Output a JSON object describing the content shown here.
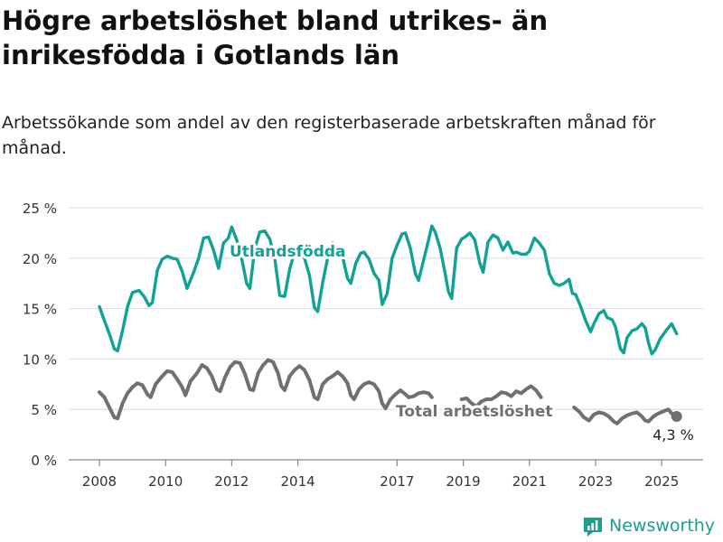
{
  "title": "Högre arbetslöshet bland utrikes- än inrikesfödda i Gotlands län",
  "subtitle": "Arbetssökande som andel av den registerbaserade arbetskraften månad för månad.",
  "brand": "Newsworthy",
  "colors": {
    "foreign": "#12a195",
    "total": "#707070",
    "brand": "#1a9e8f"
  },
  "chart_data": {
    "type": "line",
    "ylim": [
      0,
      25
    ],
    "yticks": [
      "0 %",
      "5 %",
      "10 %",
      "15 %",
      "20 %",
      "25 %"
    ],
    "xticks": [
      "2008",
      "2010",
      "2012",
      "2014",
      "2017",
      "2019",
      "2021",
      "2023",
      "2025"
    ],
    "grid": "horizontal",
    "series": [
      {
        "name": "Utlandsfödda",
        "color": "#12a195",
        "points": [
          [
            2008.0,
            15.2
          ],
          [
            2008.15,
            13.8
          ],
          [
            2008.3,
            12.5
          ],
          [
            2008.45,
            11.0
          ],
          [
            2008.55,
            10.8
          ],
          [
            2008.7,
            12.8
          ],
          [
            2008.85,
            15.2
          ],
          [
            2009.0,
            16.6
          ],
          [
            2009.2,
            16.8
          ],
          [
            2009.35,
            16.2
          ],
          [
            2009.5,
            15.3
          ],
          [
            2009.6,
            15.6
          ],
          [
            2009.75,
            18.8
          ],
          [
            2009.9,
            19.9
          ],
          [
            2010.05,
            20.2
          ],
          [
            2010.2,
            20.0
          ],
          [
            2010.35,
            19.9
          ],
          [
            2010.5,
            18.7
          ],
          [
            2010.65,
            17.0
          ],
          [
            2010.85,
            18.6
          ],
          [
            2011.0,
            20.0
          ],
          [
            2011.15,
            22.0
          ],
          [
            2011.3,
            22.1
          ],
          [
            2011.45,
            20.8
          ],
          [
            2011.6,
            19.0
          ],
          [
            2011.75,
            21.5
          ],
          [
            2011.9,
            22.0
          ],
          [
            2012.0,
            23.1
          ],
          [
            2012.15,
            21.8
          ],
          [
            2012.3,
            20.0
          ],
          [
            2012.45,
            17.5
          ],
          [
            2012.55,
            17.0
          ],
          [
            2012.7,
            21.0
          ],
          [
            2012.85,
            22.6
          ],
          [
            2013.0,
            22.7
          ],
          [
            2013.15,
            21.9
          ],
          [
            2013.3,
            20.0
          ],
          [
            2013.45,
            16.3
          ],
          [
            2013.6,
            16.2
          ],
          [
            2013.75,
            18.9
          ],
          [
            2013.9,
            20.6
          ],
          [
            2014.05,
            20.8
          ],
          [
            2014.2,
            20.0
          ],
          [
            2014.35,
            18.3
          ],
          [
            2014.5,
            15.1
          ],
          [
            2014.6,
            14.7
          ],
          [
            2014.75,
            17.6
          ],
          [
            2014.9,
            20.0
          ],
          [
            2015.05,
            21.5
          ],
          [
            2015.2,
            20.8
          ],
          [
            2015.35,
            20.2
          ],
          [
            2015.5,
            18.0
          ],
          [
            2015.6,
            17.5
          ],
          [
            2015.75,
            19.5
          ],
          [
            2015.9,
            20.5
          ],
          [
            2016.0,
            20.6
          ],
          [
            2016.15,
            19.9
          ],
          [
            2016.3,
            18.5
          ],
          [
            2016.45,
            17.8
          ],
          [
            2016.55,
            15.4
          ],
          [
            2016.7,
            16.5
          ],
          [
            2016.85,
            20.0
          ],
          [
            2017.0,
            21.3
          ],
          [
            2017.15,
            22.4
          ],
          [
            2017.25,
            22.5
          ],
          [
            2017.4,
            21.0
          ],
          [
            2017.55,
            18.5
          ],
          [
            2017.65,
            17.8
          ],
          [
            2017.8,
            19.8
          ],
          [
            2017.95,
            21.8
          ],
          [
            2018.05,
            23.2
          ],
          [
            2018.15,
            22.6
          ],
          [
            2018.3,
            21.0
          ],
          [
            2018.45,
            18.5
          ],
          [
            2018.55,
            16.7
          ],
          [
            2018.65,
            16.0
          ],
          [
            2018.8,
            21.0
          ],
          [
            2018.95,
            21.9
          ],
          [
            2019.05,
            22.1
          ],
          [
            2019.2,
            22.5
          ],
          [
            2019.35,
            21.8
          ],
          [
            2019.5,
            19.5
          ],
          [
            2019.6,
            18.6
          ],
          [
            2019.75,
            21.6
          ],
          [
            2019.9,
            22.3
          ],
          [
            2020.05,
            22.0
          ],
          [
            2020.2,
            20.8
          ],
          [
            2020.35,
            21.6
          ],
          [
            2020.5,
            20.5
          ],
          [
            2020.6,
            20.6
          ],
          [
            2020.75,
            20.4
          ],
          [
            2020.9,
            20.4
          ],
          [
            2021.0,
            20.7
          ],
          [
            2021.15,
            22.0
          ],
          [
            2021.3,
            21.5
          ],
          [
            2021.45,
            20.8
          ],
          [
            2021.6,
            18.5
          ],
          [
            2021.75,
            17.5
          ],
          [
            2021.9,
            17.3
          ],
          [
            2022.05,
            17.5
          ],
          [
            2022.2,
            17.9
          ],
          [
            2022.3,
            16.5
          ],
          [
            2022.4,
            16.4
          ],
          [
            2022.55,
            15.2
          ],
          [
            2022.7,
            13.8
          ],
          [
            2022.85,
            12.7
          ],
          [
            2022.95,
            13.5
          ],
          [
            2023.1,
            14.5
          ],
          [
            2023.25,
            14.8
          ],
          [
            2023.35,
            14.1
          ],
          [
            2023.5,
            13.9
          ],
          [
            2023.6,
            13.2
          ],
          [
            2023.75,
            11.0
          ],
          [
            2023.85,
            10.6
          ],
          [
            2023.95,
            12.1
          ],
          [
            2024.1,
            12.8
          ],
          [
            2024.25,
            13.0
          ],
          [
            2024.4,
            13.5
          ],
          [
            2024.5,
            13.1
          ],
          [
            2024.6,
            11.6
          ],
          [
            2024.7,
            10.5
          ],
          [
            2024.8,
            10.9
          ],
          [
            2024.95,
            12.0
          ],
          [
            2025.15,
            12.9
          ],
          [
            2025.3,
            13.5
          ],
          [
            2025.45,
            12.5
          ]
        ]
      },
      {
        "name": "Total arbetslöshet",
        "color": "#707070",
        "points": [
          [
            2008.0,
            6.7
          ],
          [
            2008.15,
            6.2
          ],
          [
            2008.3,
            5.2
          ],
          [
            2008.45,
            4.2
          ],
          [
            2008.55,
            4.1
          ],
          [
            2008.7,
            5.6
          ],
          [
            2008.85,
            6.6
          ],
          [
            2009.0,
            7.2
          ],
          [
            2009.15,
            7.6
          ],
          [
            2009.3,
            7.4
          ],
          [
            2009.45,
            6.5
          ],
          [
            2009.55,
            6.2
          ],
          [
            2009.7,
            7.5
          ],
          [
            2009.9,
            8.3
          ],
          [
            2010.05,
            8.8
          ],
          [
            2010.2,
            8.7
          ],
          [
            2010.35,
            8.0
          ],
          [
            2010.5,
            7.2
          ],
          [
            2010.6,
            6.4
          ],
          [
            2010.75,
            7.8
          ],
          [
            2010.95,
            8.6
          ],
          [
            2011.1,
            9.4
          ],
          [
            2011.25,
            9.1
          ],
          [
            2011.4,
            8.3
          ],
          [
            2011.55,
            7.0
          ],
          [
            2011.65,
            6.8
          ],
          [
            2011.8,
            8.2
          ],
          [
            2011.95,
            9.2
          ],
          [
            2012.1,
            9.7
          ],
          [
            2012.25,
            9.6
          ],
          [
            2012.4,
            8.5
          ],
          [
            2012.55,
            7.0
          ],
          [
            2012.65,
            6.9
          ],
          [
            2012.8,
            8.6
          ],
          [
            2012.95,
            9.4
          ],
          [
            2013.1,
            9.9
          ],
          [
            2013.25,
            9.7
          ],
          [
            2013.4,
            8.6
          ],
          [
            2013.5,
            7.3
          ],
          [
            2013.6,
            6.9
          ],
          [
            2013.75,
            8.3
          ],
          [
            2013.9,
            8.9
          ],
          [
            2014.05,
            9.3
          ],
          [
            2014.2,
            8.9
          ],
          [
            2014.35,
            7.9
          ],
          [
            2014.5,
            6.2
          ],
          [
            2014.6,
            6.0
          ],
          [
            2014.75,
            7.5
          ],
          [
            2014.9,
            8.0
          ],
          [
            2015.05,
            8.3
          ],
          [
            2015.2,
            8.7
          ],
          [
            2015.35,
            8.3
          ],
          [
            2015.5,
            7.6
          ],
          [
            2015.6,
            6.4
          ],
          [
            2015.7,
            6.0
          ],
          [
            2015.85,
            7.0
          ],
          [
            2016.0,
            7.5
          ],
          [
            2016.15,
            7.7
          ],
          [
            2016.3,
            7.5
          ],
          [
            2016.45,
            6.8
          ],
          [
            2016.55,
            5.6
          ],
          [
            2016.65,
            5.1
          ],
          [
            2016.8,
            6.0
          ],
          [
            2016.95,
            6.5
          ],
          [
            2017.1,
            6.9
          ],
          [
            2017.25,
            6.5
          ],
          [
            2017.35,
            6.2
          ]
        ],
        "points2": [
          [
            2018.95,
            6.0
          ],
          [
            2019.1,
            6.1
          ],
          [
            2019.25,
            5.6
          ],
          [
            2019.4,
            5.3
          ],
          [
            2019.55,
            5.8
          ],
          [
            2019.7,
            6.0
          ],
          [
            2019.85,
            6.0
          ],
          [
            2020.0,
            6.3
          ],
          [
            2020.15,
            6.7
          ],
          [
            2020.3,
            6.6
          ],
          [
            2020.45,
            6.3
          ],
          [
            2020.6,
            6.8
          ],
          [
            2020.75,
            6.6
          ],
          [
            2020.9,
            7.0
          ],
          [
            2021.05,
            7.3
          ],
          [
            2021.2,
            6.9
          ],
          [
            2021.35,
            6.2
          ]
        ],
        "points3": [
          [
            2022.35,
            5.2
          ],
          [
            2022.5,
            4.8
          ],
          [
            2022.65,
            4.2
          ],
          [
            2022.8,
            3.9
          ],
          [
            2022.95,
            4.5
          ],
          [
            2023.1,
            4.7
          ],
          [
            2023.25,
            4.6
          ],
          [
            2023.4,
            4.3
          ],
          [
            2023.55,
            3.8
          ],
          [
            2023.65,
            3.6
          ],
          [
            2023.8,
            4.1
          ],
          [
            2023.95,
            4.4
          ],
          [
            2024.1,
            4.6
          ],
          [
            2024.25,
            4.7
          ],
          [
            2024.4,
            4.3
          ],
          [
            2024.5,
            3.9
          ],
          [
            2024.6,
            3.8
          ],
          [
            2024.75,
            4.3
          ],
          [
            2024.9,
            4.6
          ],
          [
            2025.05,
            4.8
          ],
          [
            2025.2,
            5.0
          ],
          [
            2025.3,
            4.6
          ],
          [
            2025.4,
            4.3
          ]
        ],
        "points_mid": [
          [
            2017.35,
            6.2
          ],
          [
            2017.5,
            6.3
          ],
          [
            2017.65,
            6.6
          ],
          [
            2017.8,
            6.7
          ],
          [
            2017.95,
            6.6
          ],
          [
            2018.05,
            6.2
          ]
        ]
      }
    ],
    "labels": {
      "foreign_label": "Utlandsfödda",
      "total_label": "Total arbetslöshet",
      "last_value": "4,3 %",
      "last_point": [
        2025.45,
        4.3
      ]
    }
  }
}
